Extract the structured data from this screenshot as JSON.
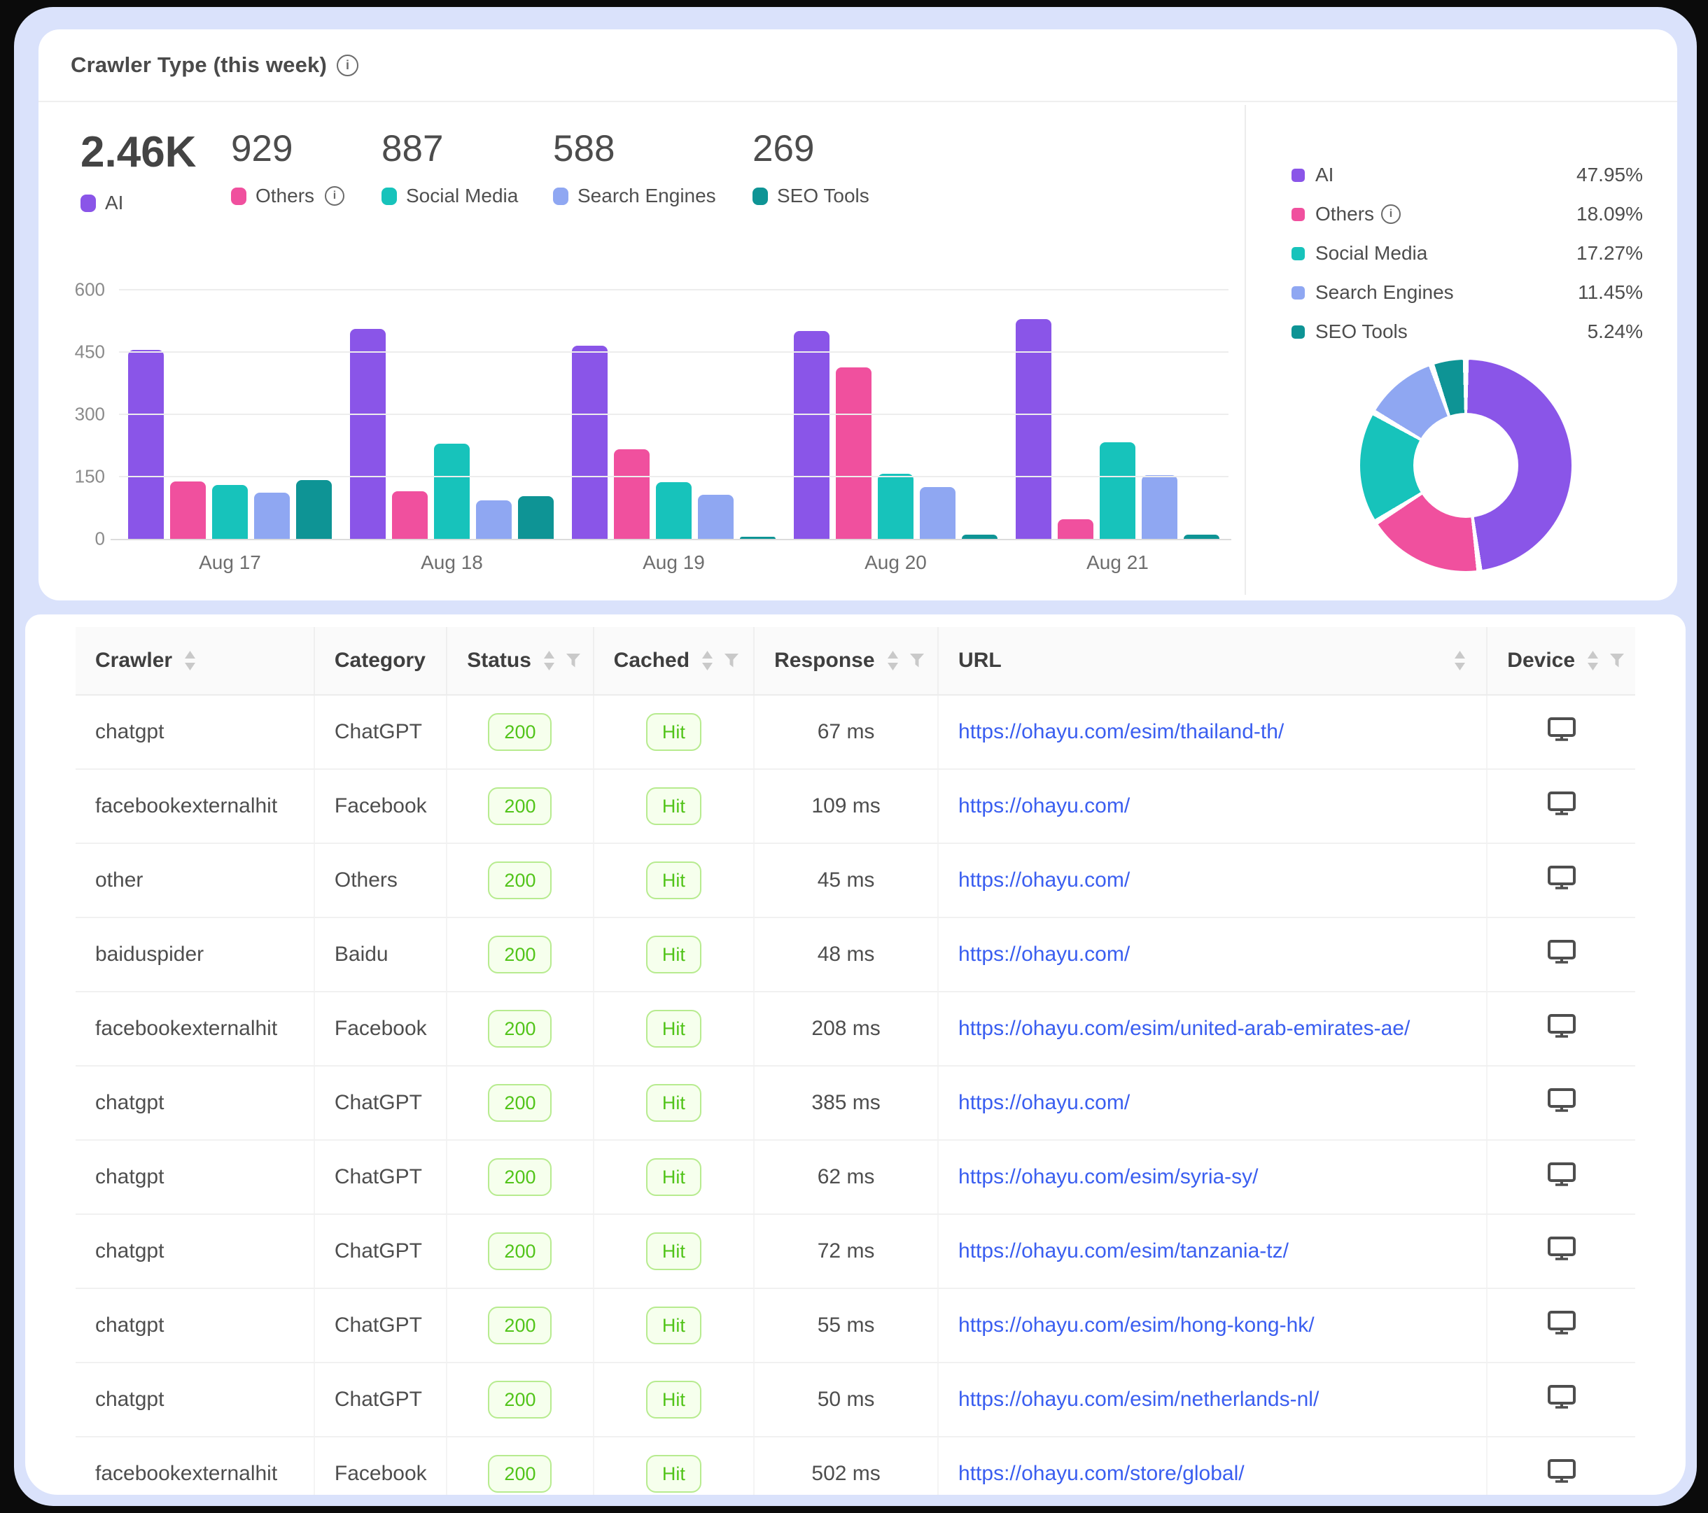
{
  "card": {
    "title": "Crawler Type (this week)",
    "stats": [
      {
        "value": "2.46K",
        "label": "AI",
        "color": "#8a55e8",
        "info": false
      },
      {
        "value": "929",
        "label": "Others",
        "color": "#f0509e",
        "info": true
      },
      {
        "value": "887",
        "label": "Social Media",
        "color": "#17c3bb",
        "info": false
      },
      {
        "value": "588",
        "label": "Search Engines",
        "color": "#8fa7f2",
        "info": false
      },
      {
        "value": "269",
        "label": "SEO Tools",
        "color": "#0e9495",
        "info": false
      }
    ],
    "legend": [
      {
        "label": "AI",
        "pct": "47.95%",
        "color": "#8a55e8",
        "info": false
      },
      {
        "label": "Others",
        "pct": "18.09%",
        "color": "#f0509e",
        "info": true
      },
      {
        "label": "Social Media",
        "pct": "17.27%",
        "color": "#17c3bb",
        "info": false
      },
      {
        "label": "Search Engines",
        "pct": "11.45%",
        "color": "#8fa7f2",
        "info": false
      },
      {
        "label": "SEO Tools",
        "pct": "5.24%",
        "color": "#0e9495",
        "info": false
      }
    ]
  },
  "chart_data": [
    {
      "type": "bar",
      "title": "Crawler Type (this week)",
      "categories": [
        "Aug 17",
        "Aug 18",
        "Aug 19",
        "Aug 20",
        "Aug 21"
      ],
      "series": [
        {
          "name": "AI",
          "color": "#8a55e8",
          "values": [
            455,
            505,
            465,
            500,
            530
          ]
        },
        {
          "name": "Others",
          "color": "#f0509e",
          "values": [
            138,
            115,
            215,
            413,
            48
          ]
        },
        {
          "name": "Social Media",
          "color": "#17c3bb",
          "values": [
            130,
            230,
            137,
            157,
            233
          ]
        },
        {
          "name": "Search Engines",
          "color": "#8fa7f2",
          "values": [
            112,
            92,
            107,
            124,
            153
          ]
        },
        {
          "name": "SEO Tools",
          "color": "#0e9495",
          "values": [
            142,
            102,
            5,
            10,
            10
          ]
        }
      ],
      "xlabel": "",
      "ylabel": "",
      "ylim": [
        0,
        600
      ],
      "yticks": [
        0,
        150,
        300,
        450,
        600
      ],
      "grid": true,
      "legend_position": "top-left"
    },
    {
      "type": "pie",
      "subtype": "donut",
      "labels": [
        "AI",
        "Others",
        "Social Media",
        "Search Engines",
        "SEO Tools"
      ],
      "values": [
        47.95,
        18.09,
        17.27,
        11.45,
        5.24
      ],
      "colors": [
        "#8a55e8",
        "#f0509e",
        "#17c3bb",
        "#8fa7f2",
        "#0e9495"
      ],
      "start_angle": "top",
      "direction": "clockwise"
    }
  ],
  "table": {
    "columns": [
      {
        "label": "Crawler",
        "sort": true,
        "filter": false,
        "sortRight": false
      },
      {
        "label": "Category",
        "sort": false,
        "filter": false,
        "sortRight": false
      },
      {
        "label": "Status",
        "sort": true,
        "filter": true,
        "sortRight": false
      },
      {
        "label": "Cached",
        "sort": true,
        "filter": true,
        "sortRight": false
      },
      {
        "label": "Response",
        "sort": true,
        "filter": true,
        "sortRight": false
      },
      {
        "label": "URL",
        "sort": true,
        "filter": false,
        "sortRight": true
      },
      {
        "label": "Device",
        "sort": true,
        "filter": true,
        "sortRight": false
      }
    ],
    "rows": [
      {
        "crawler": "chatgpt",
        "category": "ChatGPT",
        "status": "200",
        "cached": "Hit",
        "response": "67 ms",
        "url": "https://ohayu.com/esim/thailand-th/",
        "device": "desktop"
      },
      {
        "crawler": "facebookexternalhit",
        "category": "Facebook",
        "status": "200",
        "cached": "Hit",
        "response": "109 ms",
        "url": "https://ohayu.com/",
        "device": "desktop"
      },
      {
        "crawler": "other",
        "category": "Others",
        "status": "200",
        "cached": "Hit",
        "response": "45 ms",
        "url": "https://ohayu.com/",
        "device": "desktop"
      },
      {
        "crawler": "baiduspider",
        "category": "Baidu",
        "status": "200",
        "cached": "Hit",
        "response": "48 ms",
        "url": "https://ohayu.com/",
        "device": "desktop"
      },
      {
        "crawler": "facebookexternalhit",
        "category": "Facebook",
        "status": "200",
        "cached": "Hit",
        "response": "208 ms",
        "url": "https://ohayu.com/esim/united-arab-emirates-ae/",
        "device": "desktop"
      },
      {
        "crawler": "chatgpt",
        "category": "ChatGPT",
        "status": "200",
        "cached": "Hit",
        "response": "385 ms",
        "url": "https://ohayu.com/",
        "device": "desktop"
      },
      {
        "crawler": "chatgpt",
        "category": "ChatGPT",
        "status": "200",
        "cached": "Hit",
        "response": "62 ms",
        "url": "https://ohayu.com/esim/syria-sy/",
        "device": "desktop"
      },
      {
        "crawler": "chatgpt",
        "category": "ChatGPT",
        "status": "200",
        "cached": "Hit",
        "response": "72 ms",
        "url": "https://ohayu.com/esim/tanzania-tz/",
        "device": "desktop"
      },
      {
        "crawler": "chatgpt",
        "category": "ChatGPT",
        "status": "200",
        "cached": "Hit",
        "response": "55 ms",
        "url": "https://ohayu.com/esim/hong-kong-hk/",
        "device": "desktop"
      },
      {
        "crawler": "chatgpt",
        "category": "ChatGPT",
        "status": "200",
        "cached": "Hit",
        "response": "50 ms",
        "url": "https://ohayu.com/esim/netherlands-nl/",
        "device": "desktop"
      },
      {
        "crawler": "facebookexternalhit",
        "category": "Facebook",
        "status": "200",
        "cached": "Hit",
        "response": "502 ms",
        "url": "https://ohayu.com/store/global/",
        "device": "desktop"
      }
    ]
  },
  "colors": {
    "frame_bg": "#dae2fb",
    "card_bg": "#ffffff",
    "link": "#3a5ef0",
    "badge_text": "#52c41a",
    "badge_border": "#b7eb8f",
    "badge_bg": "#f6ffed",
    "grid": "#ededed",
    "header_bg": "#fafafa"
  }
}
